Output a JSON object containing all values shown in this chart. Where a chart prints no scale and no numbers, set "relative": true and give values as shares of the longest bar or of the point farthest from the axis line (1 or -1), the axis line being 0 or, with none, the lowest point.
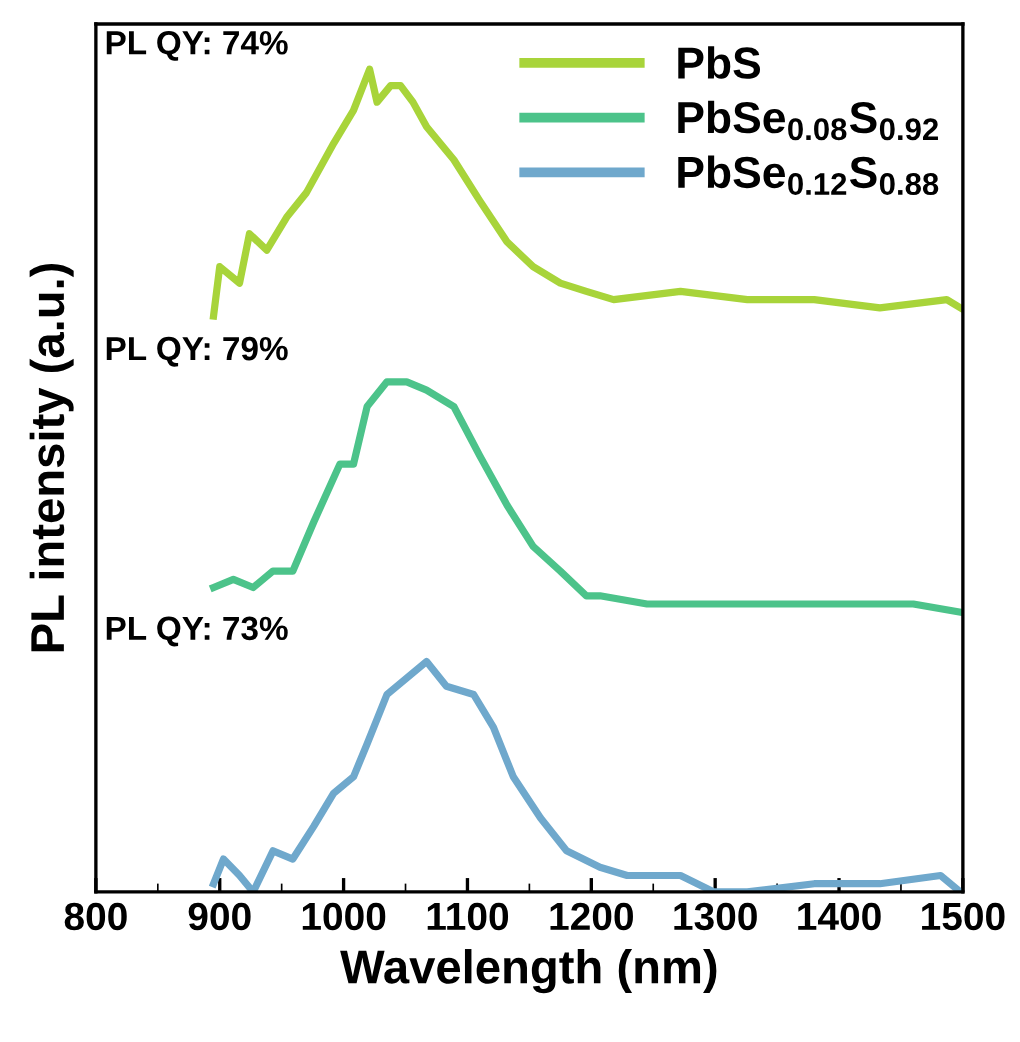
{
  "chart_data": {
    "type": "line",
    "relative": true,
    "xlabel": "Wavelength (nm)",
    "ylabel": "PL intensity (a.u.)",
    "xlim": [
      800,
      1500
    ],
    "xticks": [
      800,
      900,
      1000,
      1100,
      1200,
      1300,
      1400,
      1500
    ],
    "grid": false,
    "legend": "top right",
    "line_style": "solid",
    "marker": "none",
    "tick_labels": "x",
    "annotations": [
      "PL QY: 74%",
      "PL QY: 79%",
      "PL QY: 73%"
    ],
    "series": [
      {
        "name": "PbS",
        "color": "#a8d43a",
        "x": [
          895,
          900,
          916,
          924,
          938,
          954,
          970,
          992,
          1008,
          1021,
          1027,
          1038,
          1046,
          1056,
          1067,
          1089,
          1110,
          1132,
          1153,
          1175,
          1196,
          1218,
          1272,
          1326,
          1380,
          1433,
          1487,
          1498
        ],
        "values": [
          0.7,
          0.76,
          0.74,
          0.8,
          0.78,
          0.82,
          0.85,
          0.91,
          0.95,
          1.0,
          0.96,
          0.98,
          0.98,
          0.96,
          0.93,
          0.89,
          0.84,
          0.79,
          0.76,
          0.74,
          0.73,
          0.72,
          0.73,
          0.72,
          0.72,
          0.71,
          0.72,
          0.71
        ]
      },
      {
        "name": "PbSe$_{0.08}$S$_{0.92}$",
        "color": "#4cc38a",
        "x": [
          895,
          911,
          927,
          943,
          959,
          976,
          997,
          1008,
          1019,
          1035,
          1051,
          1067,
          1089,
          1110,
          1132,
          1153,
          1175,
          1196,
          1207,
          1245,
          1299,
          1353,
          1406,
          1460,
          1498
        ],
        "values": [
          0.37,
          0.38,
          0.37,
          0.39,
          0.39,
          0.45,
          0.52,
          0.52,
          0.59,
          0.62,
          0.62,
          0.61,
          0.59,
          0.53,
          0.47,
          0.42,
          0.39,
          0.36,
          0.36,
          0.35,
          0.35,
          0.35,
          0.35,
          0.35,
          0.34
        ]
      },
      {
        "name": "PbSe$_{0.12}$S$_{0.88}$",
        "color": "#6fa8cc",
        "x": [
          895,
          903,
          916,
          927,
          943,
          959,
          976,
          992,
          1008,
          1019,
          1035,
          1051,
          1067,
          1083,
          1105,
          1121,
          1137,
          1159,
          1180,
          1207,
          1229,
          1272,
          1299,
          1326,
          1380,
          1433,
          1482,
          1498
        ],
        "values": [
          0.01,
          0.04,
          0.02,
          0.0,
          0.05,
          0.04,
          0.08,
          0.12,
          0.14,
          0.18,
          0.24,
          0.26,
          0.28,
          0.25,
          0.24,
          0.2,
          0.14,
          0.09,
          0.05,
          0.03,
          0.02,
          0.02,
          0.0,
          0.0,
          0.01,
          0.01,
          0.02,
          0.0
        ]
      }
    ]
  }
}
